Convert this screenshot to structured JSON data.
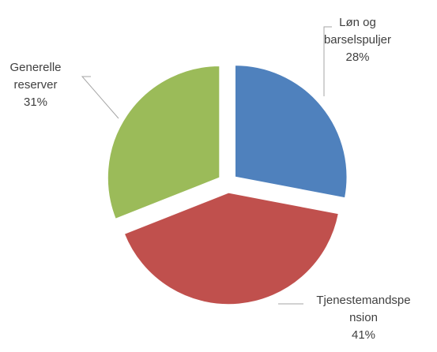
{
  "chart_data": {
    "type": "pie",
    "categories": [
      "Løn og barselspuljer",
      "Tjenestemandspension",
      "Generelle reserver"
    ],
    "values": [
      28,
      41,
      31
    ],
    "value_labels": [
      "28%",
      "41%",
      "31%"
    ],
    "colors": [
      "#4f81bd",
      "#c0504d",
      "#9bbb59"
    ]
  }
}
